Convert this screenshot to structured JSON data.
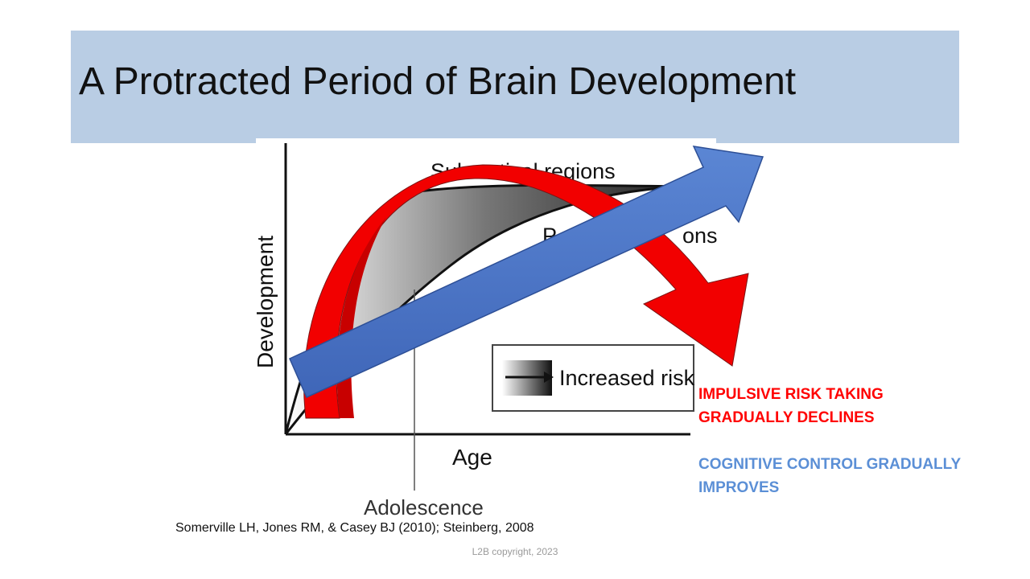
{
  "slide": {
    "title": "A Protracted Period of Brain Development",
    "title_bar_color": "#b9cde4"
  },
  "figure": {
    "subcortical_label": "Subcortical regions",
    "prefrontal_label_left": "P",
    "prefrontal_label_right": "ons",
    "y_axis_label": "Development",
    "x_axis_label": "Age",
    "adolescence_label": "Adolescence",
    "legend_label": "Increased risk"
  },
  "notes": {
    "risk_line1": "IMPULSIVE RISK TAKING",
    "risk_line2": "GRADUALLY DECLINES",
    "control_line1": "COGNITIVE CONTROL GRADUALLY",
    "control_line2": "IMPROVES",
    "risk_color": "#ff0000",
    "control_color": "#5b8fd6"
  },
  "footer": {
    "citation": "Somerville LH, Jones RM, & Casey BJ (2010); Steinberg, 2008",
    "copyright": "L2B copyright, 2023"
  }
}
